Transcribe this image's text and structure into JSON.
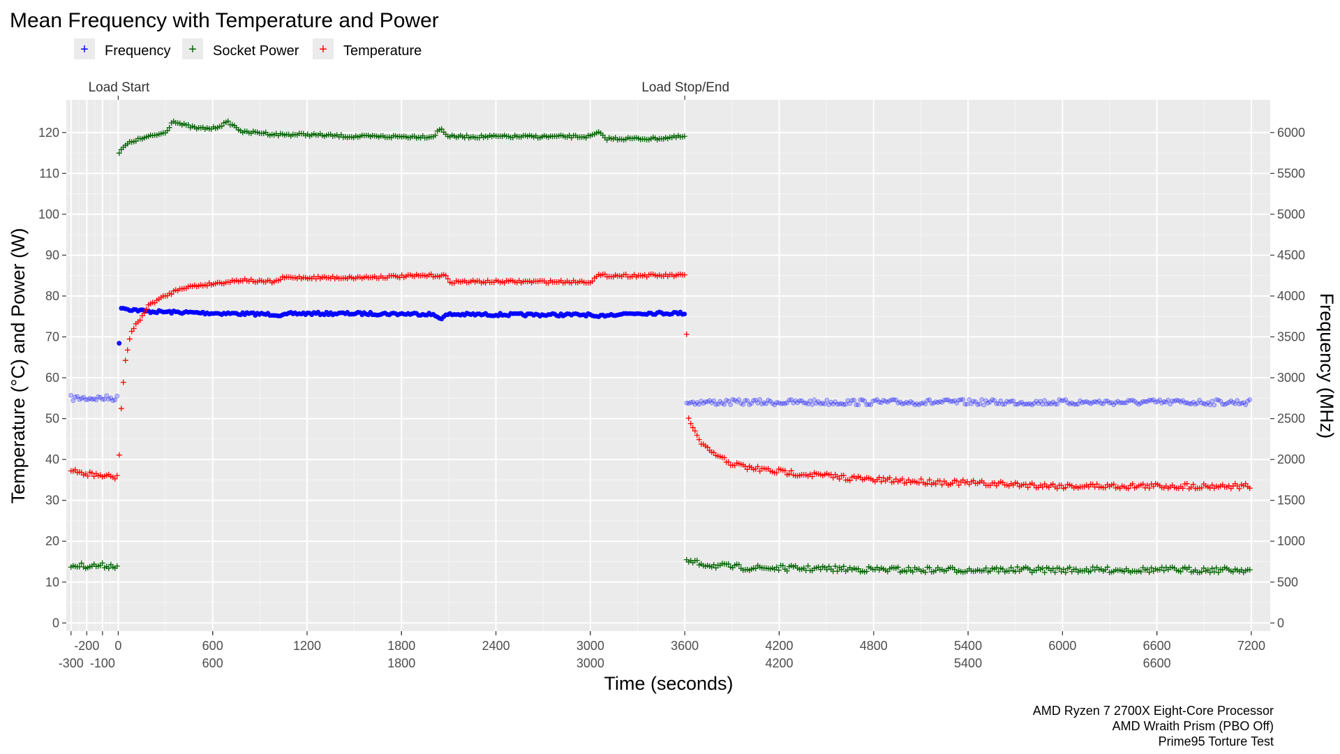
{
  "chart_data": {
    "type": "scatter",
    "title": "Mean Frequency with Temperature and Power",
    "xlabel": "Time (seconds)",
    "ylabel_left": "Temperature (°C) and Power (W)",
    "ylabel_right": "Frequency (MHz)",
    "xlim": [
      -330,
      7320
    ],
    "ylim_left": [
      -2,
      128
    ],
    "ylim_right": [
      -100,
      6400
    ],
    "x_ticks_top_row": [
      -200,
      0,
      600,
      1200,
      1800,
      2400,
      3000,
      3600,
      4200,
      4800,
      5400,
      6000,
      6600,
      7200
    ],
    "x_ticks_bottom_row": [
      -300,
      -100,
      600,
      1800,
      3000,
      4200,
      5400,
      6600
    ],
    "x_tick_labels": [
      "-300",
      "-200",
      "-100",
      "0",
      "600",
      "1200",
      "1800",
      "2400",
      "3000",
      "3600",
      "4200",
      "4800",
      "5400",
      "6000",
      "6600",
      "7200"
    ],
    "y_left_ticks": [
      0,
      10,
      20,
      30,
      40,
      50,
      60,
      70,
      80,
      90,
      100,
      110,
      120
    ],
    "y_left_tick_labels": [
      "0",
      "10",
      "20",
      "30",
      "40",
      "50",
      "60",
      "70",
      "80",
      "90",
      "100",
      "110",
      "120"
    ],
    "y_right_ticks": [
      0,
      500,
      1000,
      1500,
      2000,
      2500,
      3000,
      3500,
      4000,
      4500,
      5000,
      5500,
      6000
    ],
    "y_right_tick_labels": [
      "0",
      "500",
      "1000",
      "1500",
      "2000",
      "2500",
      "3000",
      "3500",
      "4000",
      "4500",
      "5000",
      "5500",
      "6000"
    ],
    "grid": true,
    "legend_position": "top-left",
    "annotations": [
      {
        "x": 0,
        "label": "Load Start"
      },
      {
        "x": 3600,
        "label": "Load Stop/End"
      }
    ],
    "caption": [
      "AMD Ryzen 7 2700X Eight-Core Processor",
      "AMD Wraith Prism (PBO Off)",
      "Prime95 Torture Test"
    ],
    "series": [
      {
        "name": "Frequency",
        "axis": "right",
        "unit": "MHz",
        "color": "#0000ff",
        "marker": "circle",
        "points": [
          [
            -300,
            2750
          ],
          [
            -200,
            2750
          ],
          [
            -100,
            2750
          ],
          [
            0,
            2750
          ],
          [
            10,
            3870
          ],
          [
            60,
            3840
          ],
          [
            200,
            3810
          ],
          [
            600,
            3790
          ],
          [
            1000,
            3775
          ],
          [
            1050,
            3760
          ],
          [
            1100,
            3785
          ],
          [
            1500,
            3785
          ],
          [
            1980,
            3780
          ],
          [
            2050,
            3730
          ],
          [
            2100,
            3775
          ],
          [
            2600,
            3770
          ],
          [
            3000,
            3770
          ],
          [
            3030,
            3730
          ],
          [
            3100,
            3770
          ],
          [
            3300,
            3790
          ],
          [
            3600,
            3790
          ],
          [
            3610,
            2700
          ],
          [
            7200,
            2700
          ]
        ]
      },
      {
        "name": "Socket Power",
        "axis": "left",
        "unit": "W",
        "color": "#006400",
        "marker": "plus",
        "points": [
          [
            -300,
            14
          ],
          [
            -200,
            14
          ],
          [
            -100,
            14
          ],
          [
            0,
            14
          ],
          [
            5,
            115
          ],
          [
            50,
            117
          ],
          [
            100,
            118
          ],
          [
            200,
            119
          ],
          [
            300,
            120
          ],
          [
            350,
            123
          ],
          [
            400,
            122
          ],
          [
            500,
            121
          ],
          [
            600,
            121
          ],
          [
            700,
            122.5
          ],
          [
            800,
            120
          ],
          [
            900,
            120
          ],
          [
            1000,
            119.5
          ],
          [
            1200,
            119.5
          ],
          [
            1500,
            119
          ],
          [
            1900,
            119
          ],
          [
            2000,
            119
          ],
          [
            2050,
            121
          ],
          [
            2100,
            119
          ],
          [
            2400,
            119
          ],
          [
            2800,
            119
          ],
          [
            3000,
            119
          ],
          [
            3050,
            120
          ],
          [
            3100,
            118.5
          ],
          [
            3400,
            118.5
          ],
          [
            3600,
            119
          ],
          [
            3610,
            15
          ],
          [
            3800,
            14
          ],
          [
            4000,
            13.5
          ],
          [
            5000,
            13
          ],
          [
            6000,
            13
          ],
          [
            7200,
            13
          ]
        ]
      },
      {
        "name": "Temperature",
        "axis": "left",
        "unit": "°C",
        "color": "#ff0000",
        "marker": "plus",
        "points": [
          [
            -300,
            37
          ],
          [
            -200,
            36.5
          ],
          [
            -100,
            36
          ],
          [
            0,
            35.5
          ],
          [
            15,
            50
          ],
          [
            40,
            63
          ],
          [
            80,
            71
          ],
          [
            150,
            75
          ],
          [
            200,
            78
          ],
          [
            300,
            80
          ],
          [
            400,
            82
          ],
          [
            500,
            82.5
          ],
          [
            600,
            83
          ],
          [
            700,
            83.5
          ],
          [
            800,
            84
          ],
          [
            900,
            83.5
          ],
          [
            1000,
            83.5
          ],
          [
            1050,
            84.5
          ],
          [
            1500,
            84.5
          ],
          [
            2000,
            85
          ],
          [
            2080,
            85
          ],
          [
            2100,
            83.5
          ],
          [
            2500,
            83.5
          ],
          [
            3000,
            83.5
          ],
          [
            3050,
            85
          ],
          [
            3600,
            85
          ],
          [
            3610,
            75
          ],
          [
            3615,
            60
          ],
          [
            3625,
            50
          ],
          [
            3700,
            44
          ],
          [
            3800,
            41
          ],
          [
            3900,
            39
          ],
          [
            4000,
            38
          ],
          [
            4200,
            37
          ],
          [
            4500,
            36
          ],
          [
            4800,
            35
          ],
          [
            5200,
            34.5
          ],
          [
            5600,
            34
          ],
          [
            6000,
            33.5
          ],
          [
            6600,
            33.5
          ],
          [
            7200,
            33.5
          ]
        ]
      }
    ]
  }
}
